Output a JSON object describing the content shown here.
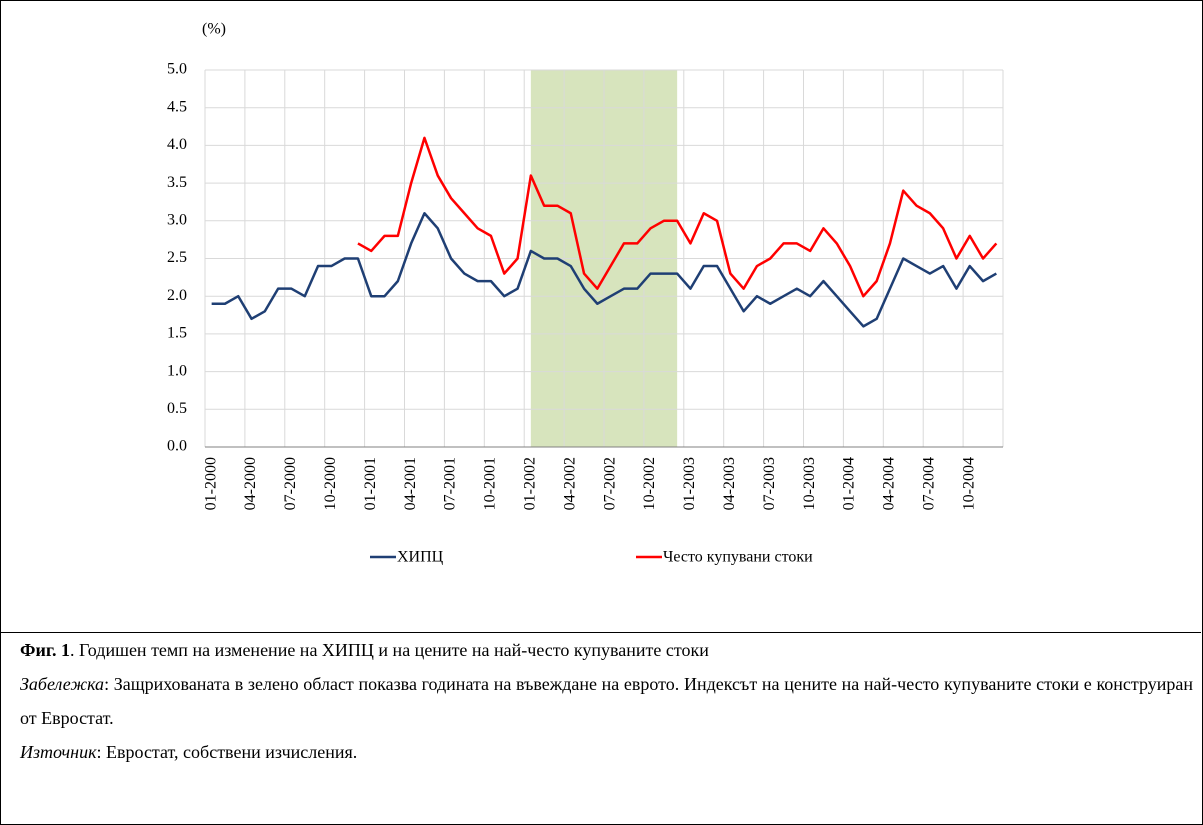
{
  "chart_data": {
    "type": "line",
    "y_unit_label": "(%)",
    "categories": [
      "01-2000",
      null,
      null,
      "04-2000",
      null,
      null,
      "07-2000",
      null,
      null,
      "10-2000",
      null,
      null,
      "01-2001",
      null,
      null,
      "04-2001",
      null,
      null,
      "07-2001",
      null,
      null,
      "10-2001",
      null,
      null,
      "01-2002",
      null,
      null,
      "04-2002",
      null,
      null,
      "07-2002",
      null,
      null,
      "10-2002",
      null,
      null,
      "01-2003",
      null,
      null,
      "04-2003",
      null,
      null,
      "07-2003",
      null,
      null,
      "10-2003",
      null,
      null,
      "01-2004",
      null,
      null,
      "04-2004",
      null,
      null,
      "07-2004",
      null,
      null,
      "10-2004",
      null,
      null
    ],
    "series": [
      {
        "name": "ХИПЦ",
        "color": "#1f3f74",
        "values": [
          1.9,
          1.9,
          2.0,
          1.7,
          1.8,
          2.1,
          2.1,
          2.0,
          2.4,
          2.4,
          2.5,
          2.5,
          2.0,
          2.0,
          2.2,
          2.7,
          3.1,
          2.9,
          2.5,
          2.3,
          2.2,
          2.2,
          2.0,
          2.1,
          2.6,
          2.5,
          2.5,
          2.4,
          2.1,
          1.9,
          2.0,
          2.1,
          2.1,
          2.3,
          2.3,
          2.3,
          2.1,
          2.4,
          2.4,
          2.1,
          1.8,
          2.0,
          1.9,
          2.0,
          2.1,
          2.0,
          2.2,
          2.0,
          1.8,
          1.6,
          1.7,
          2.1,
          2.5,
          2.4,
          2.3,
          2.4,
          2.1,
          2.4,
          2.2,
          2.3
        ]
      },
      {
        "name": "Често купувани стоки",
        "color": "#ff0000",
        "values": [
          null,
          null,
          null,
          null,
          null,
          null,
          null,
          null,
          null,
          null,
          null,
          2.7,
          2.6,
          2.8,
          2.8,
          3.5,
          4.1,
          3.6,
          3.3,
          3.1,
          2.9,
          2.8,
          2.3,
          2.5,
          3.6,
          3.2,
          3.2,
          3.1,
          2.3,
          2.1,
          2.4,
          2.7,
          2.7,
          2.9,
          3.0,
          3.0,
          2.7,
          3.1,
          3.0,
          2.3,
          2.1,
          2.4,
          2.5,
          2.7,
          2.7,
          2.6,
          2.9,
          2.7,
          2.4,
          2.0,
          2.2,
          2.7,
          3.4,
          3.2,
          3.1,
          2.9,
          2.5,
          2.8,
          2.5,
          2.7
        ]
      }
    ],
    "highlight": {
      "start": 24,
      "end": 35,
      "color": "#d7e4bd"
    },
    "ylim": [
      0,
      5
    ],
    "yticks": [
      {
        "value": 0,
        "label": "0.0"
      },
      0.5,
      {
        "value": 1,
        "label": "1.0"
      },
      1.5,
      {
        "value": 2,
        "label": "2.0"
      },
      2.5,
      {
        "value": 3,
        "label": "3.0"
      },
      3.5,
      {
        "value": 4,
        "label": "4.0"
      },
      4.5,
      {
        "value": 5,
        "label": "5.0"
      }
    ],
    "grid": true,
    "legend": "bottom"
  },
  "caption": {
    "figure_label": "Фиг. 1",
    "title": ". Годишен темп на изменение на ХИПЦ и на цените на най-често купуваните стоки",
    "note_label": "Забележка",
    "note": ": Защрихованата в зелено област показва годината на въвеждане на еврото. Индексът на цените на най-често купуваните стоки е конструиран от Евростат.",
    "source_label": "Източник",
    "source": ": Евростат, собствени изчисления."
  }
}
